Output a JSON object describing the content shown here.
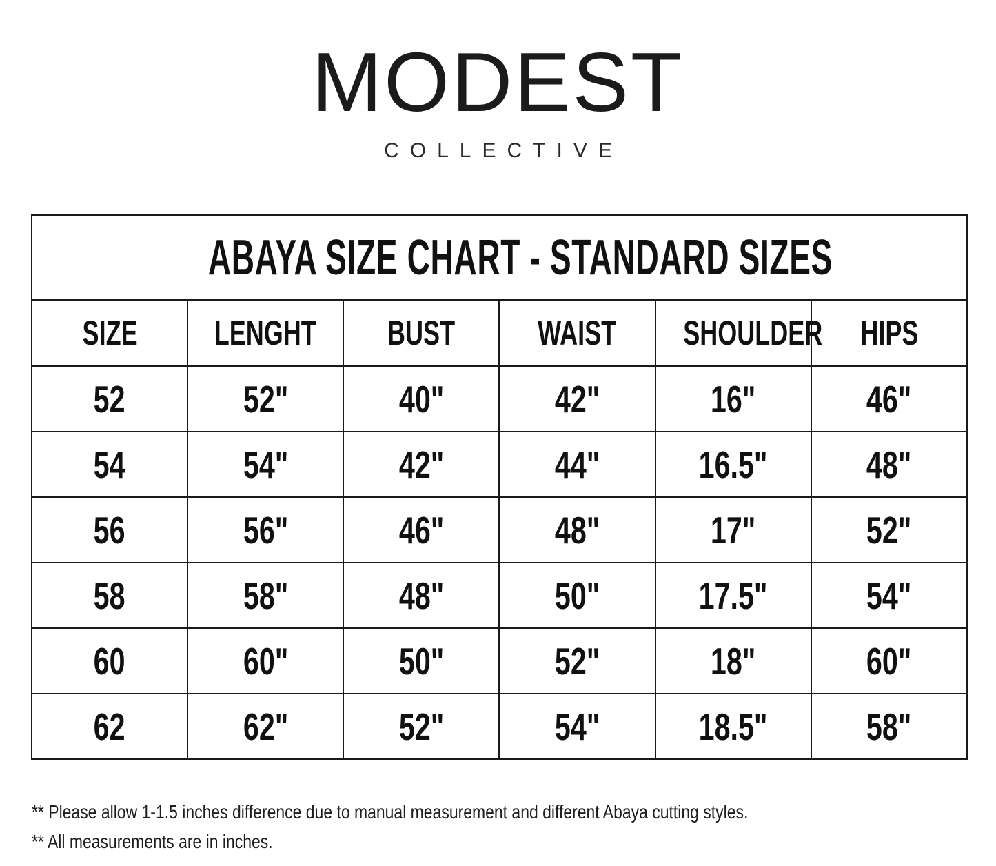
{
  "logo": {
    "name": "MODEST",
    "subtitle": "COLLECTIVE"
  },
  "table": {
    "title": "ABAYA SIZE CHART - STANDARD SIZES",
    "headers": [
      "SIZE",
      "LENGHT",
      "BUST",
      "WAIST",
      "SHOULDER",
      "HIPS"
    ],
    "rows": [
      [
        "52",
        "52\"",
        "40\"",
        "42\"",
        "16\"",
        "46\""
      ],
      [
        "54",
        "54\"",
        "42\"",
        "44\"",
        "16.5\"",
        "48\""
      ],
      [
        "56",
        "56\"",
        "46\"",
        "48\"",
        "17\"",
        "52\""
      ],
      [
        "58",
        "58\"",
        "48\"",
        "50\"",
        "17.5\"",
        "54\""
      ],
      [
        "60",
        "60\"",
        "50\"",
        "52\"",
        "18\"",
        "60\""
      ],
      [
        "62",
        "62\"",
        "52\"",
        "54\"",
        "18.5\"",
        "58\""
      ]
    ]
  },
  "notes": [
    "** Please allow 1-1.5 inches difference due to manual measurement and different Abaya cutting styles.",
    "** All measurements are in inches."
  ],
  "colors": {
    "text": "#1a1a1a",
    "border": "#1a1a1a",
    "background": "#ffffff"
  }
}
